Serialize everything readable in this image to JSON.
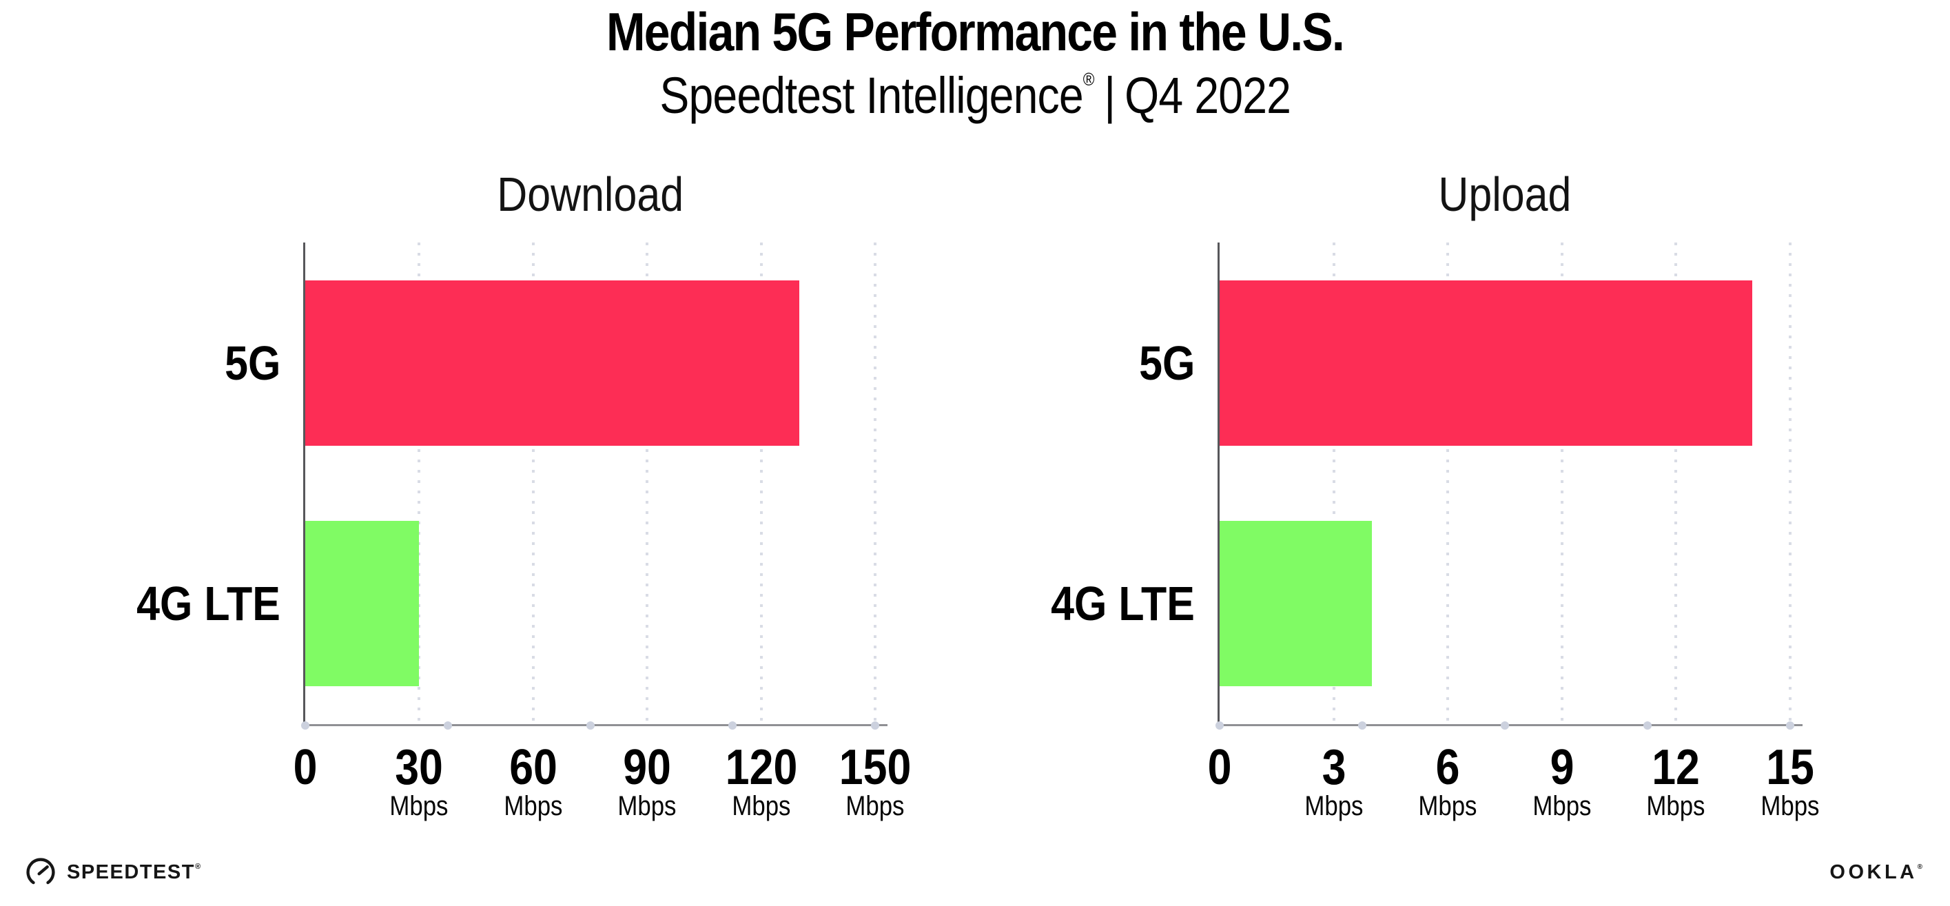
{
  "page": {
    "title": "Median 5G Performance in the U.S.",
    "subtitle": {
      "brand": "Speedtest Intelligence",
      "registered_mark": "®",
      "separator": "|",
      "period": "Q4 2022"
    }
  },
  "chart_data": [
    {
      "type": "bar",
      "orientation": "horizontal",
      "title": "Download",
      "categories": [
        "5G",
        "4G LTE"
      ],
      "values": [
        130,
        30
      ],
      "unit": "Mbps",
      "xlim": [
        0,
        150
      ],
      "xticks": [
        0,
        30,
        60,
        90,
        120,
        150
      ],
      "tick_unit_label": "Mbps",
      "bar_colors": [
        "#fd2d55",
        "#80fb64"
      ],
      "grid": "vertical-dotted",
      "legend": "none"
    },
    {
      "type": "bar",
      "orientation": "horizontal",
      "title": "Upload",
      "categories": [
        "5G",
        "4G LTE"
      ],
      "values": [
        14,
        4
      ],
      "unit": "Mbps",
      "xlim": [
        0,
        15
      ],
      "xticks": [
        0,
        3,
        6,
        9,
        12,
        15
      ],
      "tick_unit_label": "Mbps",
      "bar_colors": [
        "#fd2d55",
        "#80fb64"
      ],
      "grid": "vertical-dotted",
      "legend": "none"
    }
  ],
  "footer": {
    "speedtest_logo_text": "SPEEDTEST",
    "speedtest_trademark": "®",
    "ookla_logo_text": "OOKLA",
    "ookla_trademark": "®"
  },
  "colors": {
    "bar_5g": "#fd2d55",
    "bar_4g_lte": "#80fb64",
    "x_axis_line": "#8f9094",
    "y_axis_line": "#57575b",
    "grid_dot": "#d9dce5",
    "axis_dot": "#ccd1de",
    "text": "#000000",
    "background": "#ffffff"
  }
}
